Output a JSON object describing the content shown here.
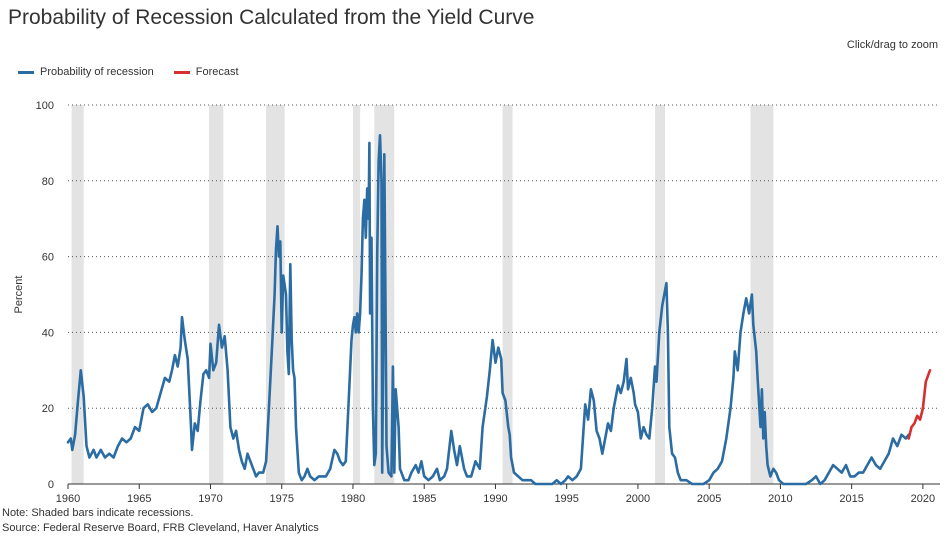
{
  "page": {
    "title": "Probability of Recession Calculated from the Yield Curve",
    "zoom_hint": "Click/drag to zoom",
    "note": "Note: Shaded bars indicate recessions.",
    "source": "Source: Federal Reserve Board, FRB Cleveland, Haver Analytics"
  },
  "chart_data": {
    "type": "line",
    "title": "Probability of Recession Calculated from the Yield Curve",
    "xlabel": "",
    "ylabel": "Percent",
    "xlim": [
      1960,
      2021.2
    ],
    "ylim": [
      0,
      100
    ],
    "x_ticks": [
      1960,
      1965,
      1970,
      1975,
      1980,
      1985,
      1990,
      1995,
      2000,
      2005,
      2010,
      2015,
      2020
    ],
    "y_ticks": [
      0,
      20,
      40,
      60,
      80,
      100
    ],
    "grid": "horizontal-dotted",
    "legend_position": "top-left",
    "recessions": [
      [
        1960.25,
        1961.1
      ],
      [
        1969.9,
        1970.9
      ],
      [
        1973.9,
        1975.2
      ],
      [
        1980.0,
        1980.5
      ],
      [
        1981.5,
        1982.9
      ],
      [
        1990.5,
        1991.2
      ],
      [
        2001.2,
        2001.9
      ],
      [
        2007.9,
        2009.5
      ]
    ],
    "series": [
      {
        "name": "Probability of recession",
        "color": "#2b6ca3",
        "points": [
          [
            1960.0,
            11
          ],
          [
            1960.2,
            12
          ],
          [
            1960.3,
            9
          ],
          [
            1960.5,
            13
          ],
          [
            1960.7,
            22
          ],
          [
            1960.9,
            30
          ],
          [
            1961.1,
            23
          ],
          [
            1961.3,
            10
          ],
          [
            1961.5,
            7
          ],
          [
            1961.8,
            9
          ],
          [
            1962.0,
            7
          ],
          [
            1962.3,
            9
          ],
          [
            1962.6,
            7
          ],
          [
            1962.9,
            8
          ],
          [
            1963.2,
            7
          ],
          [
            1963.5,
            10
          ],
          [
            1963.8,
            12
          ],
          [
            1964.1,
            11
          ],
          [
            1964.4,
            12
          ],
          [
            1964.7,
            15
          ],
          [
            1965.0,
            14
          ],
          [
            1965.3,
            20
          ],
          [
            1965.6,
            21
          ],
          [
            1965.9,
            19
          ],
          [
            1966.2,
            20
          ],
          [
            1966.5,
            24
          ],
          [
            1966.8,
            28
          ],
          [
            1967.1,
            27
          ],
          [
            1967.3,
            30
          ],
          [
            1967.5,
            34
          ],
          [
            1967.7,
            31
          ],
          [
            1967.9,
            36
          ],
          [
            1968.0,
            44
          ],
          [
            1968.2,
            38
          ],
          [
            1968.4,
            33
          ],
          [
            1968.6,
            18
          ],
          [
            1968.7,
            9
          ],
          [
            1968.9,
            16
          ],
          [
            1969.1,
            14
          ],
          [
            1969.3,
            22
          ],
          [
            1969.5,
            29
          ],
          [
            1969.7,
            30
          ],
          [
            1969.9,
            28
          ],
          [
            1970.0,
            37
          ],
          [
            1970.2,
            30
          ],
          [
            1970.4,
            32
          ],
          [
            1970.6,
            42
          ],
          [
            1970.8,
            36
          ],
          [
            1971.0,
            39
          ],
          [
            1971.2,
            30
          ],
          [
            1971.4,
            15
          ],
          [
            1971.6,
            12
          ],
          [
            1971.8,
            14
          ],
          [
            1972.0,
            9
          ],
          [
            1972.2,
            6
          ],
          [
            1972.4,
            4
          ],
          [
            1972.6,
            8
          ],
          [
            1972.8,
            6
          ],
          [
            1973.0,
            4
          ],
          [
            1973.2,
            2
          ],
          [
            1973.4,
            3
          ],
          [
            1973.7,
            3
          ],
          [
            1973.9,
            6
          ],
          [
            1974.1,
            20
          ],
          [
            1974.3,
            35
          ],
          [
            1974.5,
            50
          ],
          [
            1974.6,
            62
          ],
          [
            1974.7,
            68
          ],
          [
            1974.8,
            60
          ],
          [
            1974.9,
            64
          ],
          [
            1975.0,
            40
          ],
          [
            1975.1,
            55
          ],
          [
            1975.3,
            50
          ],
          [
            1975.4,
            35
          ],
          [
            1975.5,
            29
          ],
          [
            1975.6,
            58
          ],
          [
            1975.7,
            38
          ],
          [
            1975.8,
            30
          ],
          [
            1975.9,
            28
          ],
          [
            1976.0,
            15
          ],
          [
            1976.2,
            3
          ],
          [
            1976.4,
            1
          ],
          [
            1976.6,
            2
          ],
          [
            1976.8,
            4
          ],
          [
            1977.0,
            2
          ],
          [
            1977.3,
            1
          ],
          [
            1977.6,
            2
          ],
          [
            1977.9,
            2
          ],
          [
            1978.1,
            2
          ],
          [
            1978.4,
            4
          ],
          [
            1978.7,
            9
          ],
          [
            1978.9,
            8
          ],
          [
            1979.1,
            6
          ],
          [
            1979.3,
            5
          ],
          [
            1979.5,
            6
          ],
          [
            1979.7,
            22
          ],
          [
            1979.9,
            38
          ],
          [
            1980.0,
            42
          ],
          [
            1980.1,
            44
          ],
          [
            1980.2,
            40
          ],
          [
            1980.3,
            45
          ],
          [
            1980.4,
            40
          ],
          [
            1980.5,
            45
          ],
          [
            1980.6,
            55
          ],
          [
            1980.7,
            70
          ],
          [
            1980.8,
            75
          ],
          [
            1980.9,
            65
          ],
          [
            1981.0,
            78
          ],
          [
            1981.1,
            70
          ],
          [
            1981.15,
            90
          ],
          [
            1981.2,
            45
          ],
          [
            1981.3,
            65
          ],
          [
            1981.4,
            20
          ],
          [
            1981.5,
            5
          ],
          [
            1981.6,
            8
          ],
          [
            1981.7,
            60
          ],
          [
            1981.8,
            85
          ],
          [
            1981.9,
            92
          ],
          [
            1982.0,
            80
          ],
          [
            1982.05,
            3
          ],
          [
            1982.15,
            50
          ],
          [
            1982.2,
            87
          ],
          [
            1982.3,
            40
          ],
          [
            1982.35,
            10
          ],
          [
            1982.5,
            3
          ],
          [
            1982.7,
            2
          ],
          [
            1982.8,
            31
          ],
          [
            1982.9,
            3
          ],
          [
            1983.0,
            25
          ],
          [
            1983.2,
            15
          ],
          [
            1983.3,
            4
          ],
          [
            1983.6,
            1
          ],
          [
            1983.9,
            1
          ],
          [
            1984.1,
            3
          ],
          [
            1984.4,
            5
          ],
          [
            1984.6,
            3
          ],
          [
            1984.8,
            6
          ],
          [
            1985.0,
            2
          ],
          [
            1985.3,
            1
          ],
          [
            1985.6,
            2
          ],
          [
            1985.9,
            4
          ],
          [
            1986.1,
            1
          ],
          [
            1986.4,
            2
          ],
          [
            1986.6,
            4
          ],
          [
            1986.9,
            14
          ],
          [
            1987.1,
            9
          ],
          [
            1987.3,
            5
          ],
          [
            1987.5,
            10
          ],
          [
            1987.8,
            4
          ],
          [
            1988.0,
            2
          ],
          [
            1988.3,
            2
          ],
          [
            1988.6,
            6
          ],
          [
            1988.9,
            4
          ],
          [
            1989.1,
            15
          ],
          [
            1989.4,
            23
          ],
          [
            1989.6,
            30
          ],
          [
            1989.8,
            38
          ],
          [
            1990.0,
            32
          ],
          [
            1990.2,
            36
          ],
          [
            1990.4,
            33
          ],
          [
            1990.5,
            24
          ],
          [
            1990.7,
            22
          ],
          [
            1990.9,
            15
          ],
          [
            1991.0,
            13
          ],
          [
            1991.1,
            7
          ],
          [
            1991.3,
            3
          ],
          [
            1991.6,
            2
          ],
          [
            1991.9,
            1
          ],
          [
            1992.2,
            1
          ],
          [
            1992.5,
            1
          ],
          [
            1992.8,
            0
          ],
          [
            1993.1,
            0
          ],
          [
            1993.4,
            0
          ],
          [
            1993.7,
            0
          ],
          [
            1994.0,
            0
          ],
          [
            1994.3,
            1
          ],
          [
            1994.6,
            0
          ],
          [
            1994.9,
            1
          ],
          [
            1995.1,
            2
          ],
          [
            1995.4,
            1
          ],
          [
            1995.7,
            2
          ],
          [
            1996.0,
            4
          ],
          [
            1996.3,
            21
          ],
          [
            1996.5,
            17
          ],
          [
            1996.7,
            25
          ],
          [
            1996.9,
            22
          ],
          [
            1997.1,
            14
          ],
          [
            1997.3,
            12
          ],
          [
            1997.5,
            8
          ],
          [
            1997.7,
            12
          ],
          [
            1997.9,
            16
          ],
          [
            1998.1,
            14
          ],
          [
            1998.3,
            20
          ],
          [
            1998.6,
            26
          ],
          [
            1998.8,
            24
          ],
          [
            1999.0,
            27
          ],
          [
            1999.2,
            33
          ],
          [
            1999.3,
            25
          ],
          [
            1999.5,
            28
          ],
          [
            1999.7,
            24
          ],
          [
            1999.8,
            21
          ],
          [
            2000.0,
            19
          ],
          [
            2000.2,
            12
          ],
          [
            2000.4,
            15
          ],
          [
            2000.6,
            13
          ],
          [
            2000.8,
            12
          ],
          [
            2001.0,
            20
          ],
          [
            2001.2,
            31
          ],
          [
            2001.3,
            27
          ],
          [
            2001.5,
            40
          ],
          [
            2001.7,
            47
          ],
          [
            2001.9,
            51
          ],
          [
            2002.0,
            53
          ],
          [
            2002.1,
            40
          ],
          [
            2002.2,
            15
          ],
          [
            2002.4,
            8
          ],
          [
            2002.6,
            7
          ],
          [
            2002.8,
            3
          ],
          [
            2003.0,
            1
          ],
          [
            2003.4,
            1
          ],
          [
            2003.8,
            0
          ],
          [
            2004.2,
            0
          ],
          [
            2004.6,
            0
          ],
          [
            2005.0,
            1
          ],
          [
            2005.3,
            3
          ],
          [
            2005.6,
            4
          ],
          [
            2005.9,
            6
          ],
          [
            2006.2,
            12
          ],
          [
            2006.5,
            20
          ],
          [
            2006.7,
            28
          ],
          [
            2006.8,
            35
          ],
          [
            2007.0,
            30
          ],
          [
            2007.2,
            40
          ],
          [
            2007.4,
            45
          ],
          [
            2007.6,
            49
          ],
          [
            2007.8,
            45
          ],
          [
            2008.0,
            50
          ],
          [
            2008.1,
            42
          ],
          [
            2008.3,
            35
          ],
          [
            2008.4,
            28
          ],
          [
            2008.6,
            15
          ],
          [
            2008.7,
            25
          ],
          [
            2008.8,
            12
          ],
          [
            2008.9,
            19
          ],
          [
            2009.0,
            10
          ],
          [
            2009.1,
            5
          ],
          [
            2009.3,
            2
          ],
          [
            2009.5,
            4
          ],
          [
            2009.7,
            3
          ],
          [
            2009.9,
            1
          ],
          [
            2010.2,
            0
          ],
          [
            2010.6,
            0
          ],
          [
            2011.0,
            0
          ],
          [
            2011.4,
            0
          ],
          [
            2011.8,
            0
          ],
          [
            2012.2,
            1
          ],
          [
            2012.5,
            2
          ],
          [
            2012.8,
            0
          ],
          [
            2013.1,
            1
          ],
          [
            2013.4,
            3
          ],
          [
            2013.7,
            5
          ],
          [
            2014.0,
            4
          ],
          [
            2014.3,
            3
          ],
          [
            2014.6,
            5
          ],
          [
            2014.9,
            2
          ],
          [
            2015.2,
            2
          ],
          [
            2015.5,
            3
          ],
          [
            2015.8,
            3
          ],
          [
            2016.1,
            5
          ],
          [
            2016.4,
            7
          ],
          [
            2016.7,
            5
          ],
          [
            2017.0,
            4
          ],
          [
            2017.3,
            6
          ],
          [
            2017.6,
            8
          ],
          [
            2017.9,
            12
          ],
          [
            2018.2,
            10
          ],
          [
            2018.5,
            13
          ],
          [
            2018.8,
            12
          ],
          [
            2019.0,
            13
          ]
        ]
      },
      {
        "name": "Forecast",
        "color": "#d62f2f",
        "points": [
          [
            2019.0,
            12
          ],
          [
            2019.2,
            15
          ],
          [
            2019.4,
            16
          ],
          [
            2019.6,
            18
          ],
          [
            2019.8,
            17
          ],
          [
            2020.0,
            20
          ],
          [
            2020.2,
            27
          ],
          [
            2020.4,
            29
          ],
          [
            2020.5,
            30
          ]
        ]
      }
    ]
  }
}
